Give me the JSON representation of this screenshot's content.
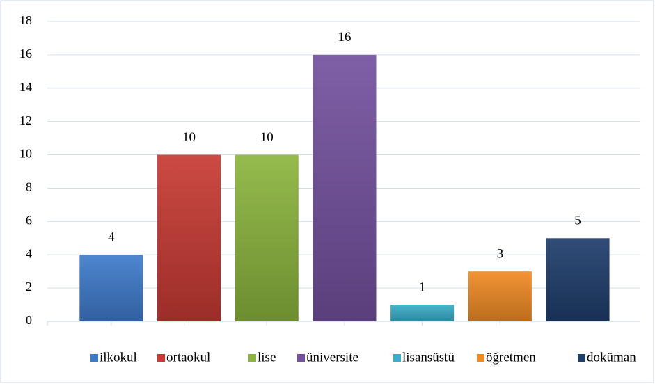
{
  "chart_data": {
    "type": "bar",
    "categories": [
      "ilkokul",
      "ortaokul",
      "lise",
      "üniversite",
      "lisansüstü",
      "öğretmen",
      "doküman"
    ],
    "values": [
      4,
      10,
      10,
      16,
      1,
      3,
      5
    ],
    "colors": [
      "#3f7bcc",
      "#c83a33",
      "#8cb53d",
      "#74519f",
      "#3aaecb",
      "#f08b24",
      "#1f3e6c"
    ],
    "ylim": [
      0,
      18
    ],
    "yticks": [
      0,
      2,
      4,
      6,
      8,
      10,
      12,
      14,
      16,
      18
    ],
    "grid": true,
    "legend": "bottom"
  }
}
